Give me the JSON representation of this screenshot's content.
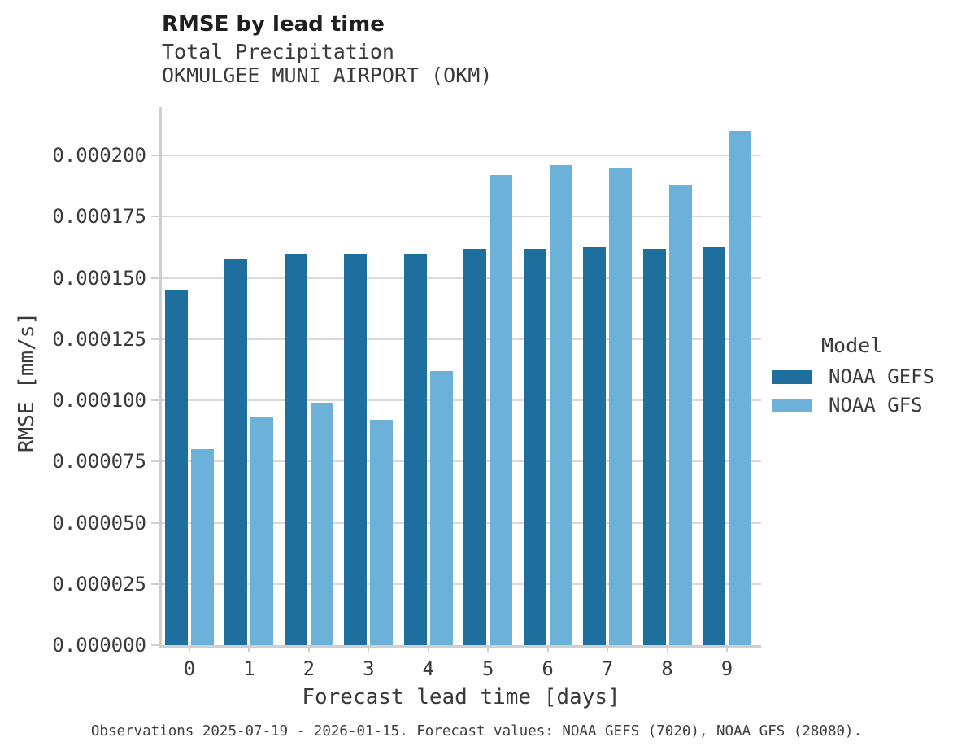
{
  "header": {
    "title": "RMSE by lead time",
    "subtitle1": "Total Precipitation",
    "subtitle2": "OKMULGEE MUNI AIRPORT (OKM)"
  },
  "chart_data": {
    "type": "bar",
    "title": "RMSE by lead time",
    "subtitle": [
      "Total Precipitation",
      "OKMULGEE MUNI AIRPORT (OKM)"
    ],
    "categories": [
      "0",
      "1",
      "2",
      "3",
      "4",
      "5",
      "6",
      "7",
      "8",
      "9"
    ],
    "series": [
      {
        "name": "NOAA GEFS",
        "color": "#1e6e9e",
        "values": [
          0.000145,
          0.000158,
          0.00016,
          0.00016,
          0.00016,
          0.000162,
          0.000162,
          0.000163,
          0.000162,
          0.000163
        ]
      },
      {
        "name": "NOAA GFS",
        "color": "#6bb1d8",
        "values": [
          8e-05,
          9.3e-05,
          9.9e-05,
          9.2e-05,
          0.000112,
          0.000192,
          0.000196,
          0.000195,
          0.000188,
          0.00021
        ]
      }
    ],
    "xlabel": "Forecast lead time [days]",
    "ylabel": "RMSE [mm/s]",
    "ylim": [
      0,
      0.00022
    ],
    "yticks": [
      0,
      2.5e-05,
      5e-05,
      7.5e-05,
      0.0001,
      0.000125,
      0.00015,
      0.000175,
      0.0002
    ],
    "ytick_labels": [
      "0.000000",
      "0.000025",
      "0.000050",
      "0.000075",
      "0.000100",
      "0.000125",
      "0.000150",
      "0.000175",
      "0.000200"
    ],
    "grid": true,
    "legend_title": "Model",
    "legend_position": "center-right"
  },
  "footer": {
    "caption": "Observations 2025-07-19 - 2026-01-15. Forecast values: NOAA GEFS (7020), NOAA GFS (28080)."
  },
  "colors": {
    "gefs_bar": "#1e6e9e",
    "gfs_bar": "#6bb1d8",
    "gridline": "#d9d9d9",
    "spine": "#cfcfcf",
    "title_text": "#1f1f1f",
    "body_text": "#3a3a3a"
  }
}
